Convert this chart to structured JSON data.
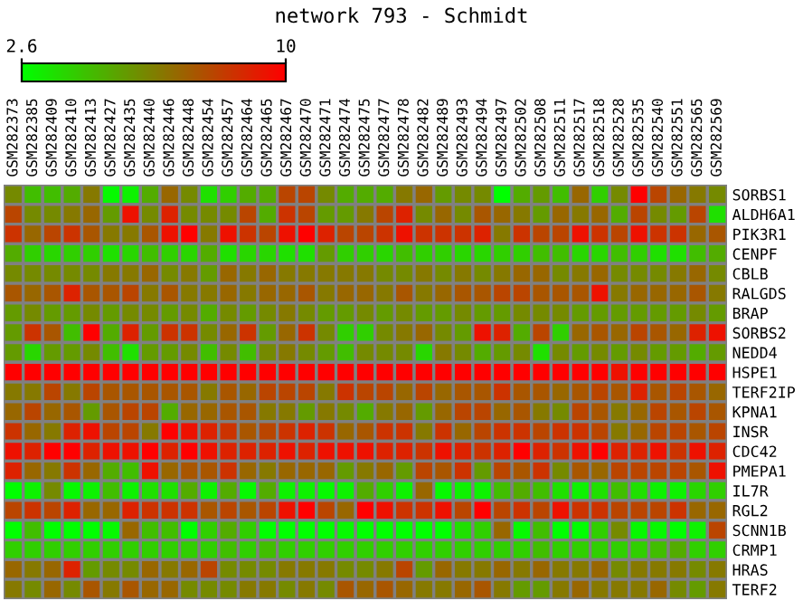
{
  "chart_data": {
    "type": "heatmap",
    "title": "network 793 - Schmidt",
    "categories": [
      "GSM282373",
      "GSM282385",
      "GSM282409",
      "GSM282410",
      "GSM282413",
      "GSM282427",
      "GSM282435",
      "GSM282440",
      "GSM282446",
      "GSM282448",
      "GSM282454",
      "GSM282457",
      "GSM282464",
      "GSM282465",
      "GSM282467",
      "GSM282470",
      "GSM282471",
      "GSM282474",
      "GSM282475",
      "GSM282477",
      "GSM282478",
      "GSM282482",
      "GSM282489",
      "GSM282493",
      "GSM282494",
      "GSM282497",
      "GSM282502",
      "GSM282508",
      "GSM282511",
      "GSM282517",
      "GSM282518",
      "GSM282528",
      "GSM282535",
      "GSM282540",
      "GSM282551",
      "GSM282565",
      "GSM282569"
    ],
    "y_categories": [
      "SORBS1",
      "ALDH6A1",
      "PIK3R1",
      "CENPF",
      "CBLB",
      "RALGDS",
      "BRAP",
      "SORBS2",
      "NEDD4",
      "HSPE1",
      "TERF2IP",
      "KPNA1",
      "INSR",
      "CDC42",
      "PMEPA1",
      "IL7R",
      "RGL2",
      "SCNN1B",
      "CRMP1",
      "HRAS",
      "TERF2"
    ],
    "cells": [
      [
        6,
        4.5,
        4.5,
        5,
        6.5,
        2.8,
        3,
        5,
        7,
        6,
        3.5,
        4,
        5,
        5,
        8,
        8,
        6,
        5,
        5,
        5,
        6.5,
        7,
        5.5,
        6,
        6,
        2.6,
        5,
        5.5,
        4.5,
        7,
        4,
        6,
        10,
        8,
        7,
        6.5,
        6
      ],
      [
        8,
        6,
        6,
        6.5,
        7,
        5.5,
        9.5,
        6,
        9,
        6,
        6,
        6,
        8,
        5,
        8.5,
        8,
        5.5,
        5.5,
        6.5,
        8,
        9,
        6,
        7,
        6,
        7.5,
        7,
        6.5,
        5.5,
        7,
        6.5,
        7,
        5,
        8,
        6,
        5.5,
        8,
        3.5
      ],
      [
        8.5,
        7,
        8,
        8.5,
        7.5,
        6.5,
        6.5,
        7.5,
        9.5,
        10,
        6.5,
        9.5,
        8.5,
        8,
        9.5,
        10,
        9,
        8,
        8,
        8.5,
        9.5,
        8.5,
        8.5,
        8.5,
        9,
        6.5,
        8.5,
        8,
        8,
        9.5,
        8.5,
        8,
        9.5,
        8.5,
        8.5,
        7,
        7.5
      ],
      [
        5,
        4,
        3.8,
        4,
        4,
        3.5,
        3.8,
        4.5,
        4,
        3.8,
        5,
        3.5,
        3.8,
        3.8,
        3.5,
        3.5,
        5.5,
        4,
        4,
        3.8,
        4.5,
        4,
        4,
        3.8,
        3.8,
        4,
        4,
        4.5,
        4.5,
        3.8,
        3.8,
        4.5,
        4,
        3.5,
        3.5,
        4.5,
        5
      ],
      [
        6,
        6,
        6,
        6,
        6,
        6.5,
        6.5,
        7,
        6,
        6.5,
        5.5,
        7,
        6.5,
        7,
        6.5,
        6.5,
        6.5,
        6.5,
        6.5,
        6,
        6,
        6.5,
        6,
        6.5,
        6,
        6.5,
        7,
        7,
        6,
        6.5,
        7,
        6,
        6,
        6,
        6.5,
        7,
        6
      ],
      [
        7.5,
        7,
        7.5,
        9,
        7.5,
        7.5,
        8,
        6.5,
        7.5,
        6.5,
        6.5,
        7,
        6.5,
        7,
        7,
        7.5,
        6.5,
        7,
        7,
        6.5,
        7.5,
        6.5,
        7,
        7.5,
        7.5,
        8,
        8,
        7.5,
        7.5,
        7.5,
        9.5,
        6.5,
        7,
        7,
        7,
        7.5,
        6.5
      ],
      [
        5.5,
        6,
        5.5,
        5.5,
        6,
        5.5,
        6,
        6,
        5.5,
        6,
        5,
        6,
        5.5,
        6,
        6.5,
        6,
        5.5,
        5.5,
        6,
        5.5,
        6,
        5.5,
        5.5,
        6,
        5.5,
        5.5,
        6,
        6,
        6,
        5.5,
        5.5,
        5.5,
        5.5,
        5.5,
        5.5,
        6,
        5.5
      ],
      [
        5.5,
        8.5,
        7.5,
        4.5,
        10,
        5,
        9,
        5.5,
        8.5,
        8.5,
        6,
        7,
        8.5,
        5.5,
        7,
        8.5,
        6,
        4,
        4,
        6,
        6.5,
        7,
        6,
        5.5,
        9.5,
        9,
        5,
        8,
        4,
        7,
        7.5,
        7,
        8,
        7.5,
        7,
        9,
        9.5
      ],
      [
        5.5,
        3.8,
        5.5,
        5.5,
        6,
        4.5,
        3.5,
        5.5,
        5.5,
        6,
        4.5,
        6,
        4.5,
        6,
        6.5,
        6,
        5.5,
        4.5,
        6,
        6,
        6,
        3.8,
        6.5,
        6,
        5,
        5.5,
        6,
        3.5,
        6,
        5.5,
        6,
        5.5,
        6,
        5.5,
        5.5,
        5,
        5.5
      ],
      [
        10,
        10,
        10,
        10,
        10,
        10,
        10,
        10,
        10,
        10,
        10,
        10,
        10,
        10,
        10,
        10,
        10,
        10,
        10,
        10,
        10,
        10,
        10,
        10,
        10,
        10,
        10,
        10,
        10,
        10,
        10,
        9.5,
        10,
        10,
        10,
        10,
        10
      ],
      [
        6.5,
        6.5,
        8,
        6.5,
        8,
        7.5,
        7.5,
        7.5,
        7.5,
        7.5,
        6.5,
        7.5,
        7,
        8,
        8,
        8,
        6.5,
        8.5,
        8,
        8,
        7,
        8,
        7,
        7.5,
        7.5,
        8.5,
        7.5,
        7.5,
        7,
        7.5,
        8,
        7.5,
        9,
        7.5,
        8,
        7.5,
        7
      ],
      [
        7,
        8,
        7,
        7.5,
        5.5,
        7.5,
        8,
        8,
        5,
        7,
        7,
        7.5,
        7.5,
        6.5,
        6.5,
        5.5,
        6.5,
        6,
        5,
        6.5,
        7,
        5.5,
        7,
        8,
        8,
        7,
        7.5,
        6.5,
        6,
        8,
        7.5,
        6.5,
        7,
        8,
        7.5,
        8,
        7.5
      ],
      [
        8.5,
        7,
        6.5,
        9,
        9.5,
        8,
        8,
        6.5,
        10,
        9.5,
        9,
        8.5,
        7.5,
        8,
        8.5,
        9,
        8.5,
        7,
        7.5,
        8.5,
        8.5,
        6.5,
        8.5,
        7,
        8,
        8.5,
        8.5,
        8,
        8.5,
        8.5,
        8,
        6.5,
        7,
        8,
        8,
        7.5,
        8
      ],
      [
        9.5,
        9,
        10,
        10,
        9,
        9.5,
        9.5,
        10,
        9,
        10,
        9.5,
        9,
        9,
        9,
        9.5,
        9,
        9.5,
        9.5,
        9.5,
        9,
        9,
        8.5,
        9.5,
        9,
        8.5,
        9,
        10,
        9,
        8.5,
        9.5,
        10,
        9,
        9,
        9.5,
        8.5,
        9.5,
        9
      ],
      [
        9,
        7,
        6.5,
        8.5,
        7,
        5,
        4.5,
        9.5,
        7,
        7.5,
        7.5,
        8.5,
        7,
        6.5,
        7,
        7,
        7,
        5.5,
        6.5,
        7,
        5.5,
        8,
        7.5,
        8.5,
        5.5,
        8,
        7.5,
        8.5,
        6,
        7.5,
        7,
        8,
        8,
        8,
        8,
        7.5,
        9.5
      ],
      [
        2.6,
        3,
        6,
        2.8,
        3,
        4.5,
        3,
        3.5,
        3.5,
        5,
        3,
        5,
        2.8,
        5,
        3,
        3,
        2.8,
        3,
        5,
        4,
        3,
        7,
        2.8,
        3,
        3,
        4.5,
        5,
        4.5,
        3.5,
        3,
        3.5,
        4.5,
        3.5,
        3,
        3,
        3.8,
        4
      ],
      [
        8,
        8.5,
        8,
        9,
        7,
        7,
        9,
        8.5,
        8.5,
        8.5,
        7.5,
        8,
        7.5,
        8,
        9.5,
        10,
        8,
        7,
        10,
        9.5,
        8.5,
        8.5,
        9.5,
        8,
        10,
        8,
        8.5,
        8,
        9.5,
        8.5,
        8.5,
        8,
        8,
        8,
        8.5,
        7,
        7
      ],
      [
        2.6,
        4.5,
        2.6,
        2.6,
        2.6,
        2.8,
        7,
        4.5,
        4.5,
        2.6,
        4,
        5,
        4,
        2.6,
        2.6,
        2.6,
        2.6,
        2.8,
        2.6,
        2.6,
        2.6,
        2.6,
        2.6,
        3.5,
        4,
        7,
        2.8,
        4.5,
        2.6,
        2.6,
        4,
        6,
        2.8,
        2.8,
        2.6,
        3,
        8
      ],
      [
        4,
        4,
        4,
        4,
        4,
        4,
        4,
        4,
        4,
        4,
        4,
        4.5,
        4,
        4.5,
        4,
        4,
        4,
        4,
        4,
        4,
        4,
        4,
        4,
        4,
        4,
        4,
        4,
        4.5,
        4,
        4,
        4,
        4,
        4,
        4.5,
        5,
        4,
        4
      ],
      [
        7,
        6.5,
        7,
        9,
        5.5,
        6,
        6,
        7,
        6.5,
        7,
        8,
        6,
        6,
        6,
        6.5,
        6.5,
        6.5,
        6,
        6,
        6.5,
        8,
        5.5,
        7,
        6.5,
        6.5,
        7,
        6.5,
        7,
        6.5,
        6.5,
        7,
        6,
        6.5,
        6.5,
        6.5,
        6,
        6.5
      ],
      [
        6.5,
        6,
        7,
        6,
        7.5,
        6.5,
        7.5,
        7,
        7,
        6,
        6,
        6,
        6.5,
        6.5,
        6,
        6.5,
        6,
        7.5,
        7,
        7.5,
        7,
        6.5,
        6.5,
        7,
        7.5,
        6.5,
        5.5,
        5.5,
        6.5,
        7,
        6.5,
        6.5,
        6.5,
        7,
        6,
        5.5,
        6.5
      ]
    ],
    "clim": [
      2.6,
      10
    ],
    "cticks": [
      2.6,
      10
    ]
  }
}
